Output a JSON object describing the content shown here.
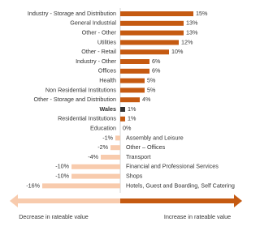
{
  "chart_data": {
    "type": "bar",
    "orientation": "horizontal",
    "categories": [
      "Industry - Storage and Distribution",
      "General Industrial",
      "Other - Other",
      "Utilities",
      "Other - Retail",
      "Industry - Other",
      "Offices",
      "Health",
      "Non Residential Institutions",
      "Other - Storage and Distribution",
      "Wales",
      "Residential Institutions",
      "Education",
      "Assembly and Leisure",
      "Other – Offices",
      "Transport",
      "Financial and Professional Services",
      "Shops",
      "Hotels, Guest and Boarding, Self Catering"
    ],
    "values": [
      15,
      13,
      13,
      12,
      10,
      6,
      6,
      5,
      5,
      4,
      1,
      1,
      0,
      -1,
      -2,
      -4,
      -10,
      -10,
      -16
    ],
    "value_labels": [
      "15%",
      "13%",
      "13%",
      "12%",
      "10%",
      "6%",
      "6%",
      "5%",
      "5%",
      "4%",
      "1%",
      "1%",
      "0%",
      "-1%",
      "-2%",
      "-4%",
      "-10%",
      "-10%",
      "-16%"
    ],
    "positive_color": "#c55a11",
    "negative_color": "#f8cbad",
    "highlight_color": "#333333",
    "highlight_category": "Wales",
    "annotations": [
      "Decrease in rateable value",
      "Increase in rateable value"
    ]
  }
}
